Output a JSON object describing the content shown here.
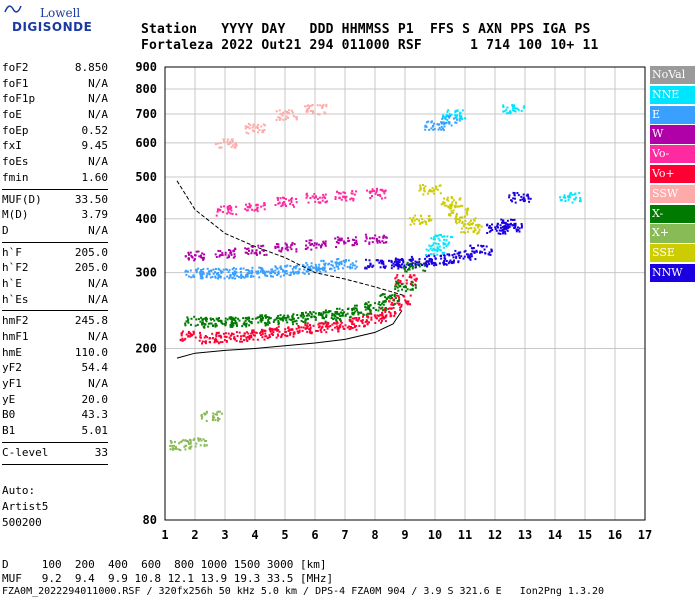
{
  "logo": {
    "line1": "Lowell",
    "line2": "DIGISONDE"
  },
  "header": {
    "row1": "Station   YYYY DAY   DDD HHMMSS P1  FFS S AXN PPS IGA PS",
    "row2": "Fortaleza 2022 Out21 294 011000 RSF      1 714 100 10+ 11"
  },
  "params": {
    "group1": [
      {
        "k": "foF2",
        "v": "8.850"
      },
      {
        "k": "foF1",
        "v": "N/A"
      },
      {
        "k": "foF1p",
        "v": "N/A"
      },
      {
        "k": "foE",
        "v": "N/A"
      },
      {
        "k": "foEp",
        "v": "0.52"
      },
      {
        "k": "fxI",
        "v": "9.45"
      },
      {
        "k": "foEs",
        "v": "N/A"
      },
      {
        "k": "fmin",
        "v": "1.60"
      }
    ],
    "group2": [
      {
        "k": "MUF(D)",
        "v": "33.50"
      },
      {
        "k": "M(D)",
        "v": "3.79"
      },
      {
        "k": "D",
        "v": "N/A"
      }
    ],
    "group3": [
      {
        "k": "h`F",
        "v": "205.0"
      },
      {
        "k": "h`F2",
        "v": "205.0"
      },
      {
        "k": "h`E",
        "v": "N/A"
      },
      {
        "k": "h`Es",
        "v": "N/A"
      }
    ],
    "group4": [
      {
        "k": "hmF2",
        "v": "245.8"
      },
      {
        "k": "hmF1",
        "v": "N/A"
      },
      {
        "k": "hmE",
        "v": "110.0"
      },
      {
        "k": "yF2",
        "v": "54.4"
      },
      {
        "k": "yF1",
        "v": "N/A"
      },
      {
        "k": "yE",
        "v": "20.0"
      },
      {
        "k": "B0",
        "v": "43.3"
      },
      {
        "k": "B1",
        "v": "5.01"
      }
    ],
    "clevel": {
      "k": "C-level",
      "v": "33"
    }
  },
  "auto": {
    "l1": "Auto:",
    "l2": "Artist5",
    "l3": "500200"
  },
  "legend": [
    {
      "label": "NoVal",
      "color": "#9a9a9a"
    },
    {
      "label": "NNE",
      "color": "#00e5ff"
    },
    {
      "label": "E",
      "color": "#3aa0ff"
    },
    {
      "label": "W",
      "color": "#b000a8"
    },
    {
      "label": "Vo-",
      "color": "#ff2aa0"
    },
    {
      "label": "Vo+",
      "color": "#ff0033"
    },
    {
      "label": "SSW",
      "color": "#ffaaaa"
    },
    {
      "label": "X-",
      "color": "#007a00"
    },
    {
      "label": "X+",
      "color": "#88bb55"
    },
    {
      "label": "SSE",
      "color": "#cccc00"
    },
    {
      "label": "NNW",
      "color": "#1a00e0"
    }
  ],
  "footer": {
    "d_row": "D     100  200  400  600  800 1000 1500 3000 [km]",
    "muf_row": "MUF   9.2  9.4  9.9 10.8 12.1 13.9 19.3 33.5 [MHz]",
    "file_row": "FZA0M_2022294011000.RSF / 320fx256h 50 kHz 5.0 km / DPS-4 FZA0M 904 / 3.9 S 321.6 E   Ion2Png 1.3.20"
  },
  "chart_data": {
    "type": "scatter",
    "title": "",
    "xlabel": "",
    "ylabel": "",
    "xlim": [
      1,
      17
    ],
    "ylim": [
      80,
      900
    ],
    "x_ticks": [
      1,
      2,
      3,
      4,
      5,
      6,
      7,
      8,
      9,
      10,
      11,
      12,
      13,
      14,
      15,
      16,
      17
    ],
    "y_ticks": [
      80,
      200,
      300,
      400,
      500,
      600,
      700,
      800,
      900
    ],
    "grid": true,
    "ylog": true,
    "legend_position": "right",
    "series": [
      {
        "name": "Vo+",
        "color": "#ff0033",
        "points": [
          [
            1.8,
            215
          ],
          [
            2.5,
            212
          ],
          [
            3,
            213
          ],
          [
            3.5,
            214
          ],
          [
            4,
            216
          ],
          [
            4.5,
            218
          ],
          [
            5,
            220
          ],
          [
            5.5,
            222
          ],
          [
            6,
            224
          ],
          [
            6.5,
            226
          ],
          [
            7,
            228
          ],
          [
            7.5,
            232
          ],
          [
            8,
            236
          ],
          [
            8.5,
            245
          ],
          [
            8.8,
            260
          ],
          [
            9,
            290
          ]
        ]
      },
      {
        "name": "X-",
        "color": "#007a00",
        "points": [
          [
            2,
            232
          ],
          [
            2.5,
            230
          ],
          [
            3,
            231
          ],
          [
            3.5,
            232
          ],
          [
            4,
            233
          ],
          [
            4.5,
            234
          ],
          [
            5,
            235
          ],
          [
            5.5,
            237
          ],
          [
            6,
            238
          ],
          [
            6.5,
            240
          ],
          [
            7,
            243
          ],
          [
            7.5,
            247
          ],
          [
            8,
            252
          ],
          [
            8.5,
            262
          ],
          [
            9,
            280
          ],
          [
            9.3,
            310
          ]
        ]
      },
      {
        "name": "E",
        "color": "#3aa0ff",
        "points": [
          [
            2,
            300
          ],
          [
            2.5,
            300
          ],
          [
            3,
            300
          ],
          [
            3.5,
            301
          ],
          [
            4,
            302
          ],
          [
            4.5,
            303
          ],
          [
            5,
            305
          ],
          [
            5.5,
            307
          ],
          [
            6,
            310
          ],
          [
            6.5,
            313
          ],
          [
            7,
            316
          ],
          [
            10,
            660
          ],
          [
            10.5,
            680
          ]
        ]
      },
      {
        "name": "W",
        "color": "#b000a8",
        "points": [
          [
            2,
            330
          ],
          [
            3,
            335
          ],
          [
            4,
            340
          ],
          [
            5,
            345
          ],
          [
            6,
            350
          ],
          [
            7,
            355
          ],
          [
            8,
            360
          ]
        ]
      },
      {
        "name": "NNW",
        "color": "#1a00e0",
        "points": [
          [
            8,
            315
          ],
          [
            8.5,
            316
          ],
          [
            9,
            318
          ],
          [
            9.5,
            320
          ],
          [
            10,
            322
          ],
          [
            10.5,
            325
          ],
          [
            11,
            330
          ],
          [
            11.5,
            340
          ],
          [
            12,
            380
          ],
          [
            12.3,
            390
          ],
          [
            12.5,
            385
          ],
          [
            12.8,
            450
          ]
        ]
      },
      {
        "name": "SSE",
        "color": "#cccc00",
        "points": [
          [
            10.5,
            440
          ],
          [
            10.8,
            420
          ],
          [
            11,
            400
          ],
          [
            11.2,
            380
          ],
          [
            9.5,
            400
          ],
          [
            9.8,
            470
          ]
        ]
      },
      {
        "name": "NNE",
        "color": "#00e5ff",
        "points": [
          [
            10,
            340
          ],
          [
            10.2,
            360
          ],
          [
            10.6,
            700
          ],
          [
            12.6,
            720
          ],
          [
            14.5,
            450
          ]
        ]
      },
      {
        "name": "Vo-",
        "color": "#ff2aa0",
        "points": [
          [
            3,
            420
          ],
          [
            4,
            430
          ],
          [
            5,
            440
          ],
          [
            6,
            448
          ],
          [
            7,
            455
          ],
          [
            8,
            460
          ]
        ]
      },
      {
        "name": "SSW",
        "color": "#ffaaaa",
        "points": [
          [
            3,
            600
          ],
          [
            4,
            650
          ],
          [
            5,
            700
          ],
          [
            6,
            720
          ]
        ]
      },
      {
        "name": "X+",
        "color": "#88bb55",
        "points": [
          [
            1.5,
            120
          ],
          [
            2,
            122
          ],
          [
            2.5,
            140
          ]
        ]
      }
    ],
    "model_curves": [
      {
        "name": "fit",
        "color": "#000000",
        "points": [
          [
            1.4,
            490
          ],
          [
            2,
            420
          ],
          [
            3,
            370
          ],
          [
            4,
            345
          ],
          [
            5,
            325
          ],
          [
            6,
            300
          ],
          [
            7,
            290
          ],
          [
            8,
            278
          ],
          [
            9,
            265
          ]
        ]
      },
      {
        "name": "trace",
        "color": "#000000",
        "points": [
          [
            1.4,
            190
          ],
          [
            2,
            195
          ],
          [
            3,
            198
          ],
          [
            4,
            200
          ],
          [
            5,
            203
          ],
          [
            6,
            206
          ],
          [
            7,
            210
          ],
          [
            8,
            218
          ],
          [
            8.6,
            228
          ],
          [
            8.9,
            245
          ]
        ]
      }
    ]
  }
}
